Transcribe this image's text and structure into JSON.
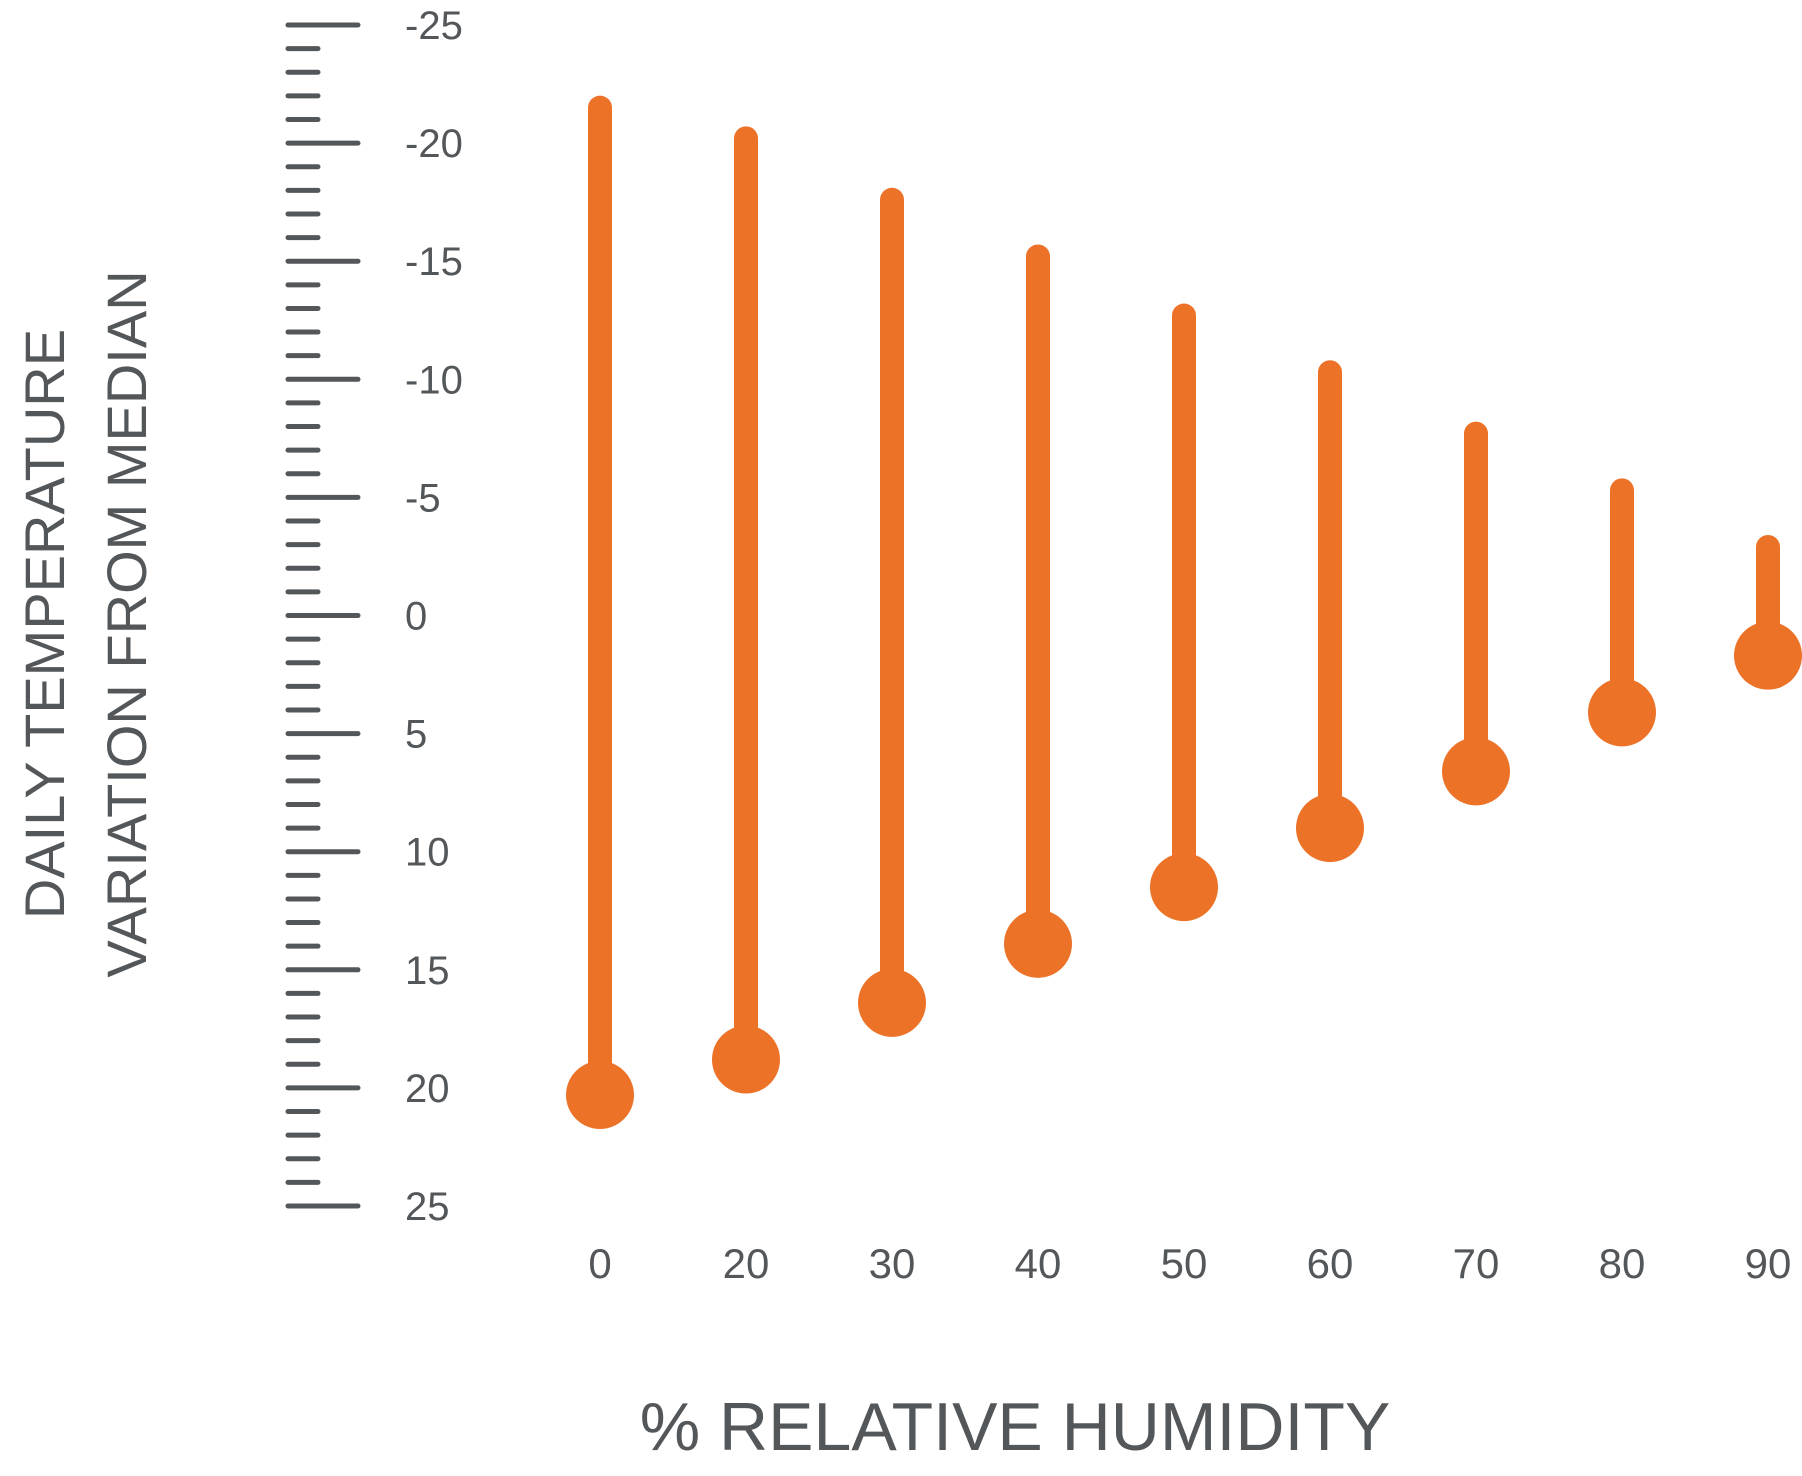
{
  "chart_data": {
    "type": "lollipop",
    "xlabel": "% RELATIVE HUMIDITY",
    "ylabel": [
      "DAILY TEMPERATURE",
      "VARIATION FROM MEDIAN"
    ],
    "y_ticks": [
      "-25",
      "-20",
      "-15",
      "-10",
      "-5",
      "0",
      "5",
      "10",
      "15",
      "20",
      "25"
    ],
    "y_tick_values": [
      -25,
      -20,
      -15,
      -10,
      -5,
      0,
      5,
      10,
      15,
      20,
      25
    ],
    "ylim": [
      -25,
      25
    ],
    "y_inverted": true,
    "categories": [
      "0",
      "20",
      "30",
      "40",
      "50",
      "60",
      "70",
      "80",
      "90"
    ],
    "series": [
      {
        "low": [
          -21.5,
          -20.2,
          -17.6,
          -15.2,
          -12.7,
          -10.3,
          -7.7,
          -5.3,
          -2.9
        ],
        "high": [
          20.3,
          18.8,
          16.4,
          13.9,
          11.5,
          9.0,
          6.6,
          4.1,
          1.7
        ]
      }
    ],
    "color": "#ec7228",
    "axis_color": "#53575a",
    "grid": false
  }
}
